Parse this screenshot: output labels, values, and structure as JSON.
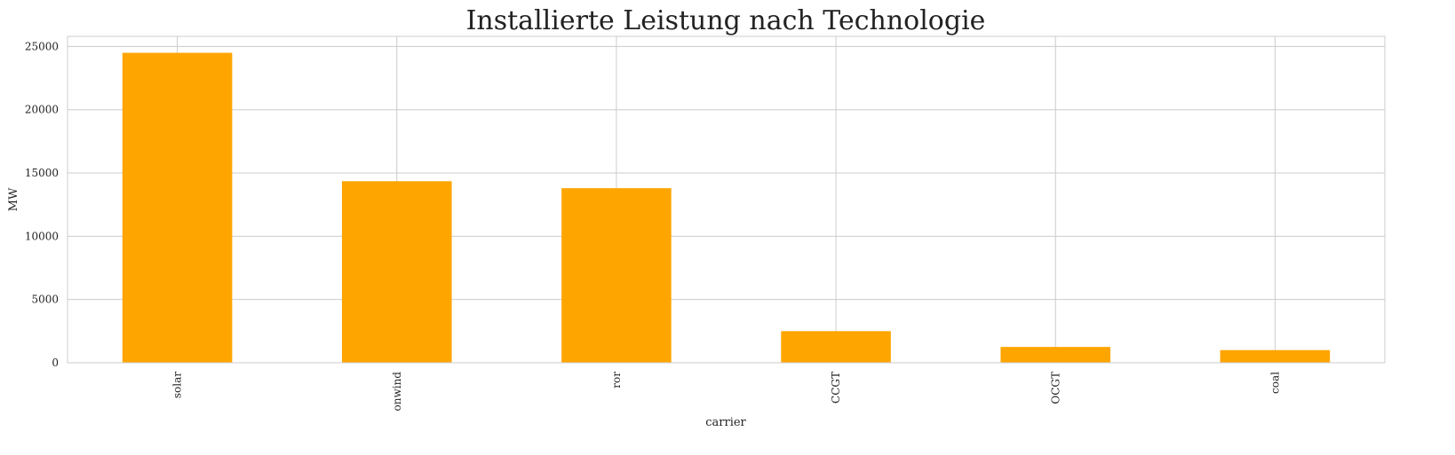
{
  "chart_data": {
    "type": "bar",
    "title": "Installierte Leistung nach Technologie",
    "xlabel": "carrier",
    "ylabel": "MW",
    "categories": [
      "solar",
      "onwind",
      "ror",
      "CCGT",
      "OCGT",
      "coal"
    ],
    "values": [
      24500,
      14350,
      13800,
      2500,
      1250,
      1000
    ],
    "ylim": [
      0,
      25800
    ],
    "yticks": [
      0,
      5000,
      10000,
      15000,
      20000,
      25000
    ],
    "grid": true,
    "bar_color": "#ffa500"
  }
}
